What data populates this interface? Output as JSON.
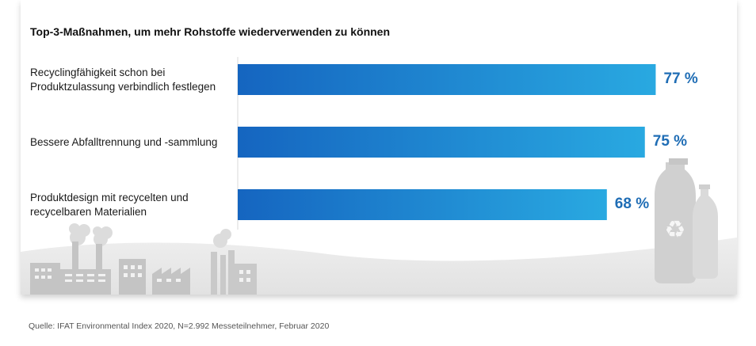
{
  "title": "Top-3-Maßnahmen, um mehr Rohstoffe wiederverwenden zu können",
  "source": "Quelle: IFAT Environmental Index 2020, N=2.992 Messeteilnehmer, Februar 2020",
  "colors": {
    "bar_dark": "#1565c0",
    "bar_light": "#29a9e1",
    "value_text": "#1f6db5",
    "scenery": "#c9c9c9"
  },
  "icons": [
    "factory-icon",
    "recycle-icon",
    "plastic-bottle-icon"
  ],
  "chart_data": {
    "type": "bar",
    "orientation": "horizontal",
    "title": "Top-3-Maßnahmen, um mehr Rohstoffe wiederverwenden zu können",
    "categories": [
      "Recyclingfähigkeit schon bei Produktzulassung verbindlich festlegen",
      "Bessere Abfalltrennung und -sammlung",
      "Produktdesign mit recycelten und recycelbaren Materialien"
    ],
    "values": [
      77,
      75,
      68
    ],
    "value_labels": [
      "77 %",
      "75 %",
      "68 %"
    ],
    "unit": "%",
    "xlim": [
      0,
      100
    ],
    "grid": false,
    "legend": "none"
  }
}
